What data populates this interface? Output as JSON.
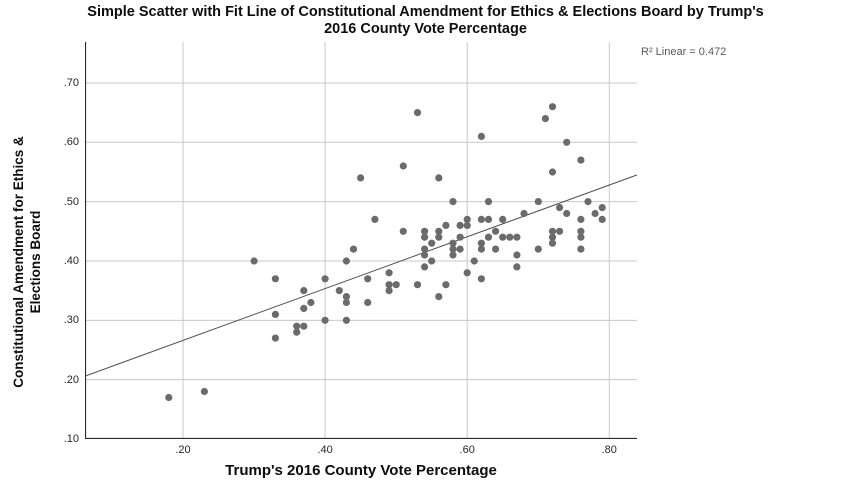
{
  "header": {
    "title_line1": "Simple Scatter with Fit Line of Constitutional Amendment for Ethics & Elections Board by Trump's",
    "title_line2": "2016 County Vote Percentage"
  },
  "annotation": {
    "r2_label": "R² Linear = 0.472"
  },
  "axes": {
    "x_title": "Trump's 2016 County Vote Percentage",
    "y_title_line1": "Constitutional Amendment for Ethics &",
    "y_title_line2": "Elections Board"
  },
  "style": {
    "point_color": "#6b6b6b",
    "grid_color": "#c8c8c8",
    "axis_color": "#2a2a2a",
    "fit_line_color": "#4f4f4f",
    "annotation_color": "#595959",
    "background": "#ffffff"
  },
  "chart_data": {
    "type": "scatter",
    "title": "Simple Scatter with Fit Line of Constitutional Amendment for Ethics & Elections Board by Trump's 2016 County Vote Percentage",
    "xlabel": "Trump's 2016 County Vote Percentage",
    "ylabel": "Constitutional Amendment for Ethics & Elections Board",
    "legend_position": "none",
    "grid": true,
    "x_ticks": [
      0.2,
      0.4,
      0.6,
      0.8
    ],
    "y_ticks": [
      0.1,
      0.2,
      0.3,
      0.4,
      0.5,
      0.6,
      0.7
    ],
    "x_range": [
      0.062,
      0.839
    ],
    "y_range": [
      0.1,
      0.769
    ],
    "r_squared": 0.472,
    "fit_line": {
      "x1": 0.062,
      "y1": 0.206,
      "x2": 0.839,
      "y2": 0.545
    },
    "points": [
      [
        0.18,
        0.17
      ],
      [
        0.23,
        0.18
      ],
      [
        0.3,
        0.4
      ],
      [
        0.33,
        0.37
      ],
      [
        0.33,
        0.31
      ],
      [
        0.33,
        0.27
      ],
      [
        0.36,
        0.29
      ],
      [
        0.36,
        0.28
      ],
      [
        0.37,
        0.35
      ],
      [
        0.37,
        0.32
      ],
      [
        0.37,
        0.29
      ],
      [
        0.38,
        0.33
      ],
      [
        0.4,
        0.37
      ],
      [
        0.4,
        0.3
      ],
      [
        0.42,
        0.35
      ],
      [
        0.43,
        0.4
      ],
      [
        0.43,
        0.34
      ],
      [
        0.43,
        0.33
      ],
      [
        0.43,
        0.3
      ],
      [
        0.45,
        0.54
      ],
      [
        0.44,
        0.42
      ],
      [
        0.46,
        0.37
      ],
      [
        0.46,
        0.33
      ],
      [
        0.47,
        0.47
      ],
      [
        0.49,
        0.38
      ],
      [
        0.49,
        0.36
      ],
      [
        0.49,
        0.35
      ],
      [
        0.5,
        0.36
      ],
      [
        0.51,
        0.56
      ],
      [
        0.51,
        0.45
      ],
      [
        0.53,
        0.65
      ],
      [
        0.53,
        0.36
      ],
      [
        0.54,
        0.45
      ],
      [
        0.54,
        0.44
      ],
      [
        0.54,
        0.42
      ],
      [
        0.54,
        0.41
      ],
      [
        0.54,
        0.39
      ],
      [
        0.55,
        0.43
      ],
      [
        0.55,
        0.4
      ],
      [
        0.56,
        0.54
      ],
      [
        0.56,
        0.45
      ],
      [
        0.56,
        0.44
      ],
      [
        0.56,
        0.34
      ],
      [
        0.57,
        0.46
      ],
      [
        0.57,
        0.36
      ],
      [
        0.58,
        0.5
      ],
      [
        0.58,
        0.43
      ],
      [
        0.58,
        0.42
      ],
      [
        0.58,
        0.41
      ],
      [
        0.59,
        0.46
      ],
      [
        0.59,
        0.44
      ],
      [
        0.59,
        0.42
      ],
      [
        0.6,
        0.47
      ],
      [
        0.6,
        0.46
      ],
      [
        0.6,
        0.38
      ],
      [
        0.61,
        0.4
      ],
      [
        0.62,
        0.61
      ],
      [
        0.62,
        0.47
      ],
      [
        0.62,
        0.43
      ],
      [
        0.62,
        0.42
      ],
      [
        0.62,
        0.37
      ],
      [
        0.63,
        0.5
      ],
      [
        0.63,
        0.47
      ],
      [
        0.63,
        0.44
      ],
      [
        0.64,
        0.45
      ],
      [
        0.64,
        0.42
      ],
      [
        0.65,
        0.47
      ],
      [
        0.65,
        0.44
      ],
      [
        0.66,
        0.44
      ],
      [
        0.67,
        0.44
      ],
      [
        0.67,
        0.41
      ],
      [
        0.67,
        0.39
      ],
      [
        0.68,
        0.48
      ],
      [
        0.7,
        0.5
      ],
      [
        0.7,
        0.42
      ],
      [
        0.71,
        0.64
      ],
      [
        0.72,
        0.66
      ],
      [
        0.72,
        0.55
      ],
      [
        0.72,
        0.45
      ],
      [
        0.72,
        0.44
      ],
      [
        0.72,
        0.43
      ],
      [
        0.73,
        0.49
      ],
      [
        0.73,
        0.45
      ],
      [
        0.74,
        0.6
      ],
      [
        0.74,
        0.48
      ],
      [
        0.76,
        0.57
      ],
      [
        0.76,
        0.47
      ],
      [
        0.76,
        0.45
      ],
      [
        0.76,
        0.44
      ],
      [
        0.76,
        0.42
      ],
      [
        0.77,
        0.5
      ],
      [
        0.78,
        0.48
      ],
      [
        0.79,
        0.49
      ],
      [
        0.79,
        0.47
      ]
    ]
  }
}
